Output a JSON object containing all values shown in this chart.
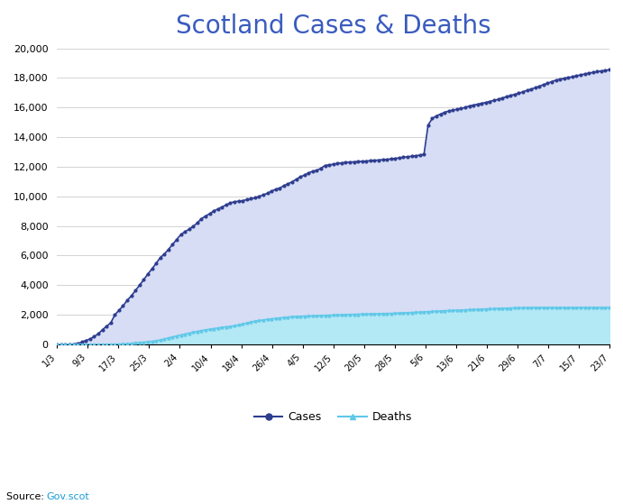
{
  "title": "Scotland Cases & Deaths",
  "title_color": "#3a5bbf",
  "title_fontsize": 20,
  "background_color": "#ffffff",
  "plot_bg_color": "#ffffff",
  "ylim": [
    0,
    20000
  ],
  "yticks": [
    0,
    2000,
    4000,
    6000,
    8000,
    10000,
    12000,
    14000,
    16000,
    18000,
    20000
  ],
  "xtick_labels": [
    "1/3",
    "9/3",
    "17/3",
    "25/3",
    "2/4",
    "10/4",
    "18/4",
    "26/4",
    "4/5",
    "12/5",
    "20/5",
    "28/5",
    "5/6",
    "13/6",
    "21/6",
    "29/6",
    "7/7",
    "15/7",
    "23/7"
  ],
  "cases_color": "#2e3d8f",
  "cases_fill_color": "#d6ddf5",
  "deaths_color": "#5ec8e8",
  "deaths_fill_color": "#b3e8f5",
  "source_text": "Source: ",
  "source_link": "Gov.scot",
  "source_link_color": "#1a9cd8",
  "legend_cases": "Cases",
  "legend_deaths": "Deaths",
  "cases_data": [
    0,
    3,
    6,
    16,
    27,
    60,
    153,
    266,
    374,
    530,
    719,
    993,
    1228,
    1452,
    1993,
    2310,
    2602,
    2980,
    3277,
    3635,
    4001,
    4368,
    4754,
    5099,
    5468,
    5858,
    6099,
    6418,
    6748,
    7090,
    7414,
    7614,
    7780,
    7975,
    8208,
    8497,
    8672,
    8829,
    9022,
    9150,
    9288,
    9428,
    9559,
    9638,
    9675,
    9710,
    9780,
    9838,
    9904,
    10004,
    10099,
    10204,
    10356,
    10476,
    10565,
    10721,
    10854,
    10983,
    11155,
    11319,
    11441,
    11591,
    11695,
    11760,
    11903,
    12089,
    12127,
    12169,
    12225,
    12264,
    12302,
    12318,
    12332,
    12345,
    12370,
    12389,
    12413,
    12435,
    12456,
    12480,
    12502,
    12531,
    12566,
    12609,
    12642,
    12677,
    12706,
    12746,
    12790,
    12852,
    14822,
    15260,
    15441,
    15560,
    15679,
    15768,
    15823,
    15884,
    15946,
    16010,
    16110,
    16168,
    16226,
    16291,
    16346,
    16414,
    16487,
    16560,
    16652,
    16731,
    16820,
    16896,
    16968,
    17068,
    17165,
    17249,
    17343,
    17447,
    17553,
    17641,
    17755,
    17850,
    17911,
    17980,
    18027,
    18077,
    18148,
    18211,
    18270,
    18326,
    18381,
    18427,
    18475,
    18516,
    18558
  ],
  "deaths_data": [
    0,
    0,
    0,
    0,
    0,
    0,
    0,
    2,
    3,
    4,
    6,
    8,
    11,
    14,
    16,
    24,
    33,
    49,
    76,
    105,
    126,
    151,
    176,
    206,
    247,
    296,
    366,
    433,
    510,
    575,
    639,
    699,
    759,
    824,
    877,
    932,
    980,
    1021,
    1063,
    1109,
    1153,
    1185,
    1218,
    1262,
    1320,
    1379,
    1441,
    1514,
    1571,
    1616,
    1648,
    1696,
    1727,
    1762,
    1792,
    1823,
    1850,
    1873,
    1890,
    1905,
    1915,
    1925,
    1939,
    1950,
    1958,
    1967,
    1976,
    1984,
    1994,
    2005,
    2013,
    2021,
    2030,
    2039,
    2047,
    2054,
    2062,
    2068,
    2074,
    2080,
    2086,
    2093,
    2102,
    2115,
    2126,
    2141,
    2156,
    2170,
    2185,
    2197,
    2210,
    2227,
    2246,
    2261,
    2273,
    2284,
    2296,
    2309,
    2321,
    2332,
    2348,
    2360,
    2374,
    2385,
    2395,
    2406,
    2418,
    2430,
    2440,
    2451,
    2461,
    2468,
    2475,
    2481,
    2484,
    2486,
    2487,
    2488,
    2489,
    2489,
    2489,
    2489,
    2489,
    2490,
    2490,
    2490,
    2490,
    2490,
    2490,
    2490,
    2491,
    2491,
    2491,
    2491,
    2491,
    2491
  ]
}
